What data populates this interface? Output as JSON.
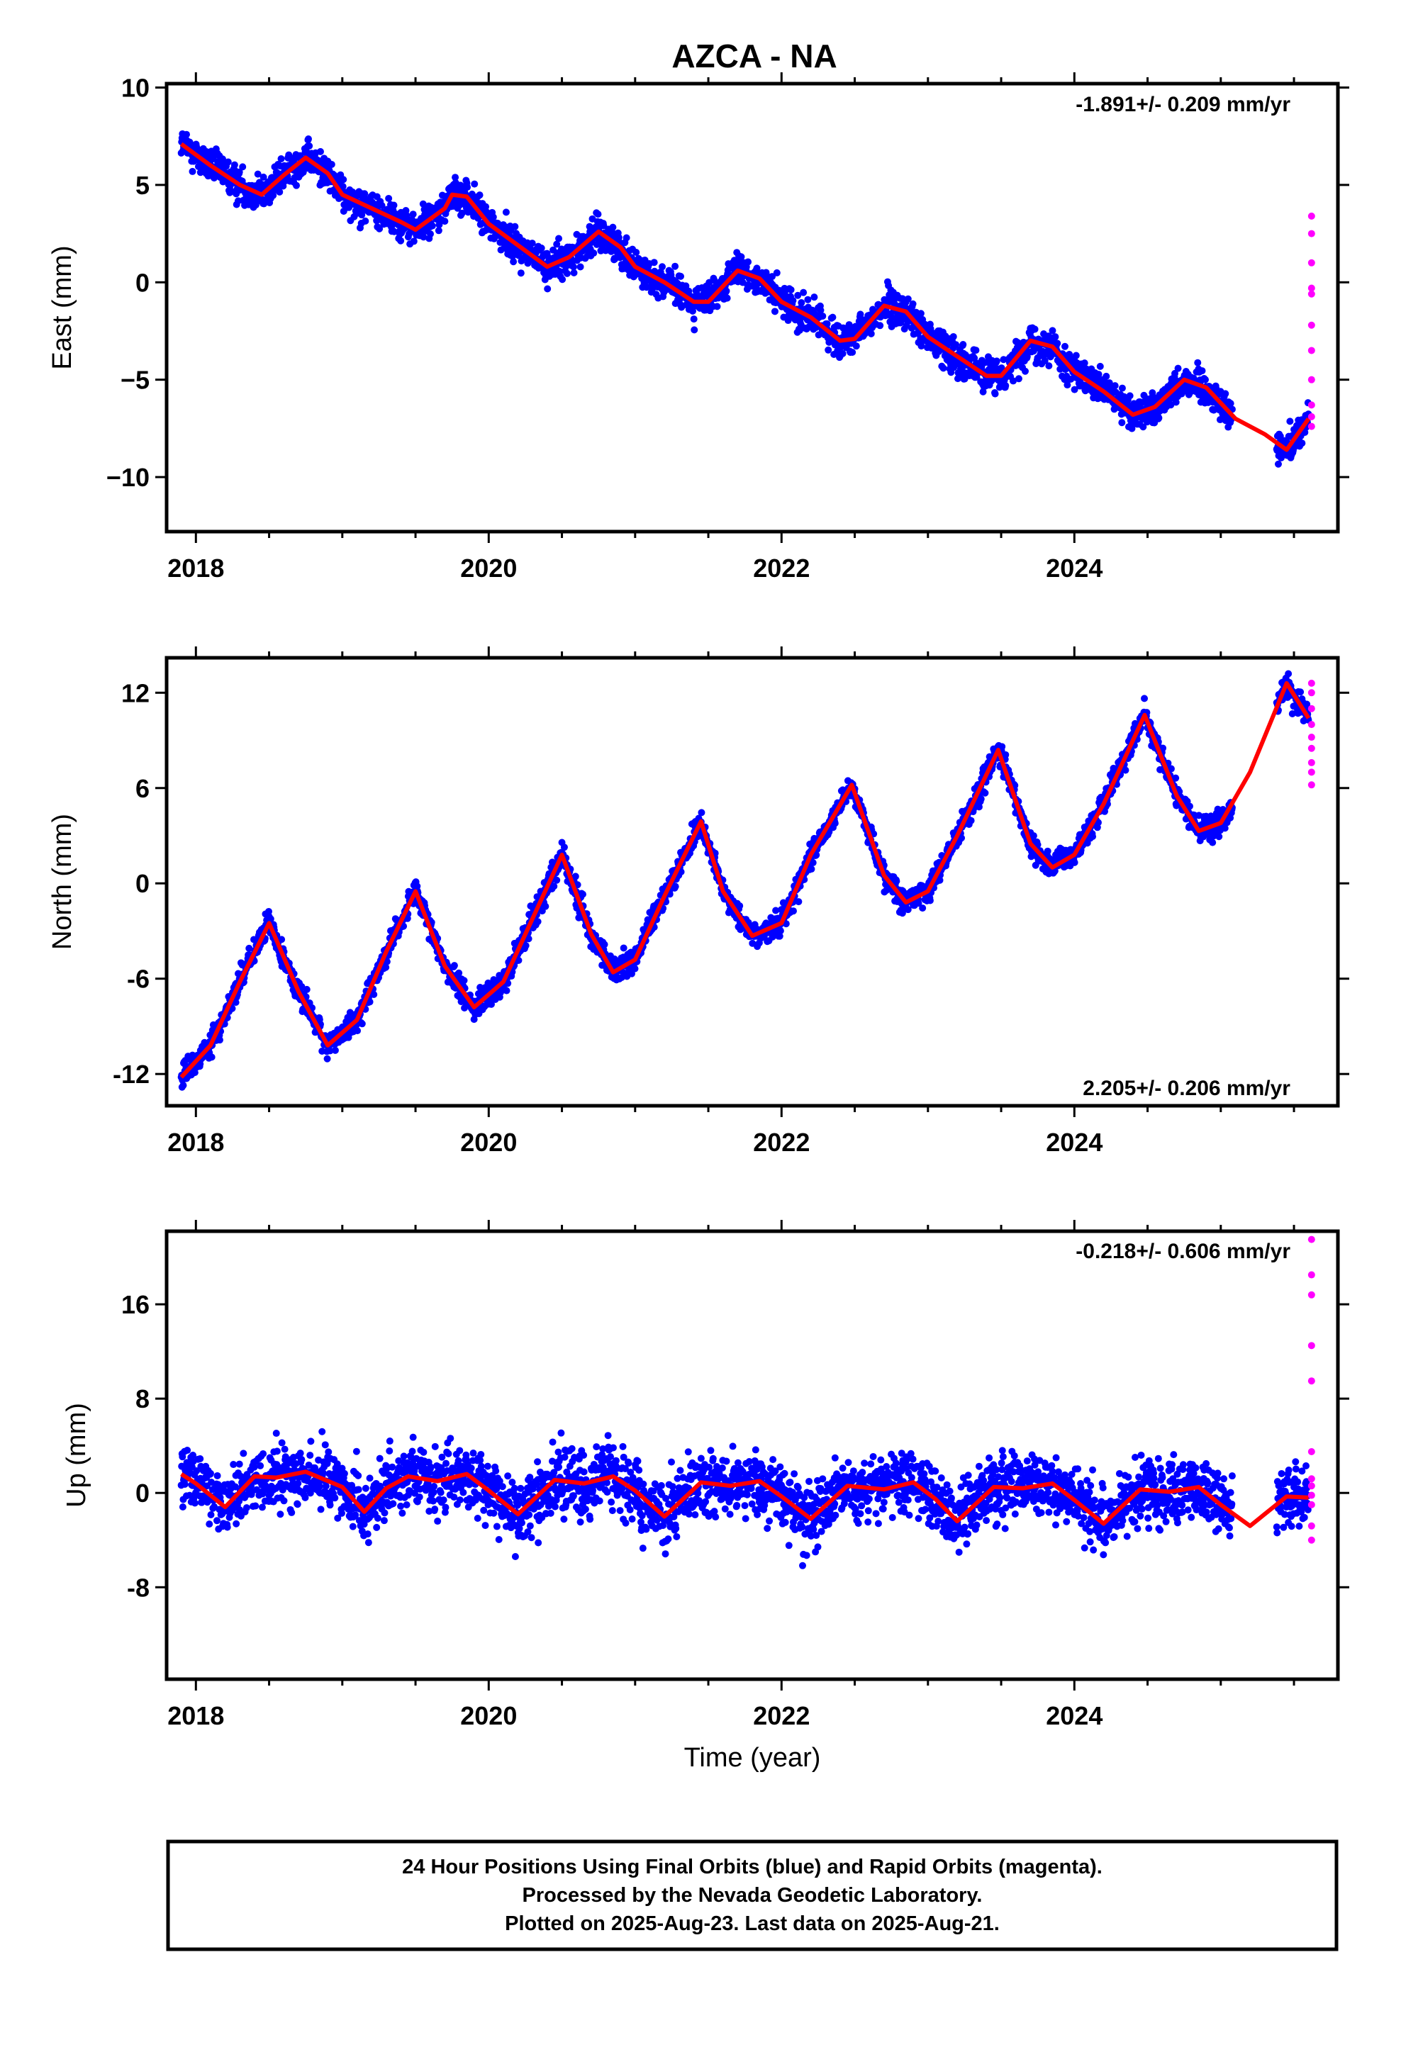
{
  "chart_data": {
    "title": "AZCA - NA",
    "type": "scatter",
    "xlabel": "Time (year)",
    "x_ticks": [
      2018,
      2020,
      2022,
      2024
    ],
    "xlim": [
      2017.8,
      2025.8
    ],
    "colors": {
      "final": "#0000ff",
      "rapid": "#ff00ff",
      "fit": "#ff0000",
      "frame": "#000000"
    },
    "panels": [
      {
        "component": "east",
        "ylabel": "East (mm)",
        "ylim": [
          -12.8,
          10.2
        ],
        "y_ticks": [
          10,
          5,
          0,
          -5,
          -10
        ],
        "y_tick_labels": [
          "10",
          "5",
          "0",
          "−5",
          "−10"
        ],
        "rate_text": "-1.891+/- 0.209 mm/yr",
        "rate_position": "top-right",
        "trend": [
          2017.9,
          7.0,
          2025.6,
          -7.6
        ],
        "annual_amp": 1.6,
        "noise": 1.1,
        "fit_series": [
          [
            2017.9,
            7.1
          ],
          [
            2018.1,
            6.0
          ],
          [
            2018.3,
            5.0
          ],
          [
            2018.45,
            4.5
          ],
          [
            2018.6,
            5.5
          ],
          [
            2018.75,
            6.4
          ],
          [
            2018.9,
            5.6
          ],
          [
            2019.0,
            4.5
          ],
          [
            2019.2,
            3.8
          ],
          [
            2019.4,
            3.1
          ],
          [
            2019.5,
            2.7
          ],
          [
            2019.7,
            3.8
          ],
          [
            2019.75,
            4.5
          ],
          [
            2019.85,
            4.4
          ],
          [
            2020.0,
            3.0
          ],
          [
            2020.2,
            1.9
          ],
          [
            2020.4,
            0.8
          ],
          [
            2020.55,
            1.3
          ],
          [
            2020.75,
            2.6
          ],
          [
            2020.9,
            1.8
          ],
          [
            2021.0,
            0.8
          ],
          [
            2021.2,
            0.0
          ],
          [
            2021.4,
            -1.0
          ],
          [
            2021.5,
            -1.0
          ],
          [
            2021.7,
            0.6
          ],
          [
            2021.85,
            0.2
          ],
          [
            2022.0,
            -1.0
          ],
          [
            2022.2,
            -1.8
          ],
          [
            2022.4,
            -3.0
          ],
          [
            2022.5,
            -2.9
          ],
          [
            2022.7,
            -1.2
          ],
          [
            2022.85,
            -1.5
          ],
          [
            2023.0,
            -2.8
          ],
          [
            2023.2,
            -3.8
          ],
          [
            2023.4,
            -4.8
          ],
          [
            2023.5,
            -4.8
          ],
          [
            2023.7,
            -3.0
          ],
          [
            2023.85,
            -3.3
          ],
          [
            2024.0,
            -4.6
          ],
          [
            2024.2,
            -5.6
          ],
          [
            2024.4,
            -6.8
          ],
          [
            2024.55,
            -6.4
          ],
          [
            2024.75,
            -5.0
          ],
          [
            2024.9,
            -5.4
          ],
          [
            2025.1,
            -7.0
          ],
          [
            2025.3,
            -7.8
          ],
          [
            2025.45,
            -8.6
          ],
          [
            2025.6,
            -7.0
          ]
        ],
        "rapid_points": [
          3.4,
          2.5,
          1.0,
          -0.3,
          -0.6,
          -2.2,
          -3.5,
          -5.0,
          -6.3,
          -6.9,
          -7.4
        ]
      },
      {
        "component": "north",
        "ylabel": "North (mm)",
        "ylim": [
          -14.0,
          14.2
        ],
        "y_ticks": [
          12,
          6,
          0,
          -6,
          -12
        ],
        "y_tick_labels": [
          "12",
          "6",
          "0",
          "-6",
          "-12"
        ],
        "rate_text": "2.205+/- 0.206 mm/yr",
        "rate_position": "bottom-right",
        "trend": [
          2017.9,
          -8.0,
          2025.6,
          9.0
        ],
        "annual_amp": 4.0,
        "noise": 1.0,
        "fit_series": [
          [
            2017.9,
            -12.2
          ],
          [
            2018.1,
            -10.2
          ],
          [
            2018.3,
            -6.2
          ],
          [
            2018.5,
            -2.5
          ],
          [
            2018.7,
            -6.8
          ],
          [
            2018.9,
            -10.2
          ],
          [
            2019.1,
            -8.6
          ],
          [
            2019.3,
            -4.3
          ],
          [
            2019.5,
            -0.5
          ],
          [
            2019.7,
            -5.2
          ],
          [
            2019.9,
            -7.8
          ],
          [
            2020.1,
            -6.2
          ],
          [
            2020.3,
            -2.2
          ],
          [
            2020.5,
            1.8
          ],
          [
            2020.7,
            -3.2
          ],
          [
            2020.85,
            -5.6
          ],
          [
            2021.0,
            -4.8
          ],
          [
            2021.2,
            -0.8
          ],
          [
            2021.45,
            3.9
          ],
          [
            2021.6,
            -0.5
          ],
          [
            2021.8,
            -3.3
          ],
          [
            2022.0,
            -2.5
          ],
          [
            2022.2,
            1.8
          ],
          [
            2022.48,
            6.2
          ],
          [
            2022.7,
            0.5
          ],
          [
            2022.85,
            -1.2
          ],
          [
            2023.0,
            -0.5
          ],
          [
            2023.2,
            3.0
          ],
          [
            2023.48,
            8.4
          ],
          [
            2023.7,
            2.5
          ],
          [
            2023.85,
            1.0
          ],
          [
            2024.0,
            1.8
          ],
          [
            2024.2,
            5.0
          ],
          [
            2024.48,
            10.6
          ],
          [
            2024.7,
            5.5
          ],
          [
            2024.85,
            3.3
          ],
          [
            2025.0,
            3.8
          ],
          [
            2025.2,
            7.0
          ],
          [
            2025.45,
            12.6
          ],
          [
            2025.6,
            10.4
          ]
        ],
        "rapid_points": [
          12.6,
          12.0,
          11.0,
          10.0,
          9.2,
          8.5,
          7.6,
          7.0,
          6.2
        ]
      },
      {
        "component": "up",
        "ylabel": "Up (mm)",
        "ylim": [
          -15.8,
          22.2
        ],
        "y_ticks": [
          16,
          8,
          0,
          -8
        ],
        "y_tick_labels": [
          "16",
          "8",
          "0",
          "-8"
        ],
        "rate_text": "-0.218+/- 0.606 mm/yr",
        "rate_position": "top-right",
        "trend": [
          2017.9,
          0.5,
          2025.6,
          -0.8
        ],
        "annual_amp": 1.4,
        "noise": 3.4,
        "fit_series": [
          [
            2017.9,
            1.6
          ],
          [
            2018.0,
            0.8
          ],
          [
            2018.2,
            -1.2
          ],
          [
            2018.4,
            1.4
          ],
          [
            2018.55,
            1.3
          ],
          [
            2018.75,
            1.8
          ],
          [
            2019.0,
            0.5
          ],
          [
            2019.15,
            -1.6
          ],
          [
            2019.3,
            0.4
          ],
          [
            2019.45,
            1.4
          ],
          [
            2019.65,
            1.0
          ],
          [
            2019.85,
            1.6
          ],
          [
            2020.0,
            0.2
          ],
          [
            2020.2,
            -1.8
          ],
          [
            2020.45,
            1.1
          ],
          [
            2020.65,
            0.8
          ],
          [
            2020.85,
            1.4
          ],
          [
            2021.0,
            0.2
          ],
          [
            2021.2,
            -2.0
          ],
          [
            2021.45,
            0.9
          ],
          [
            2021.65,
            0.6
          ],
          [
            2021.85,
            1.0
          ],
          [
            2022.0,
            -0.3
          ],
          [
            2022.2,
            -2.2
          ],
          [
            2022.45,
            0.6
          ],
          [
            2022.7,
            0.3
          ],
          [
            2022.9,
            0.9
          ],
          [
            2023.05,
            -0.5
          ],
          [
            2023.2,
            -2.4
          ],
          [
            2023.45,
            0.5
          ],
          [
            2023.65,
            0.4
          ],
          [
            2023.85,
            0.8
          ],
          [
            2024.0,
            -0.6
          ],
          [
            2024.2,
            -2.6
          ],
          [
            2024.45,
            0.3
          ],
          [
            2024.65,
            0.1
          ],
          [
            2024.85,
            0.5
          ],
          [
            2025.0,
            -1.0
          ],
          [
            2025.2,
            -2.8
          ],
          [
            2025.45,
            -0.3
          ],
          [
            2025.6,
            -0.4
          ]
        ],
        "rapid_points": [
          21.5,
          18.5,
          16.8,
          12.5,
          9.5,
          3.5,
          1.2,
          0.6,
          -0.2,
          -1.0,
          -2.8,
          -4.0
        ]
      }
    ]
  },
  "caption": {
    "line1": "24 Hour Positions Using Final Orbits (blue) and Rapid Orbits (magenta).",
    "line2": "Processed by the Nevada Geodetic Laboratory.",
    "line3": "Plotted on 2025-Aug-23. Last data on 2025-Aug-21."
  }
}
